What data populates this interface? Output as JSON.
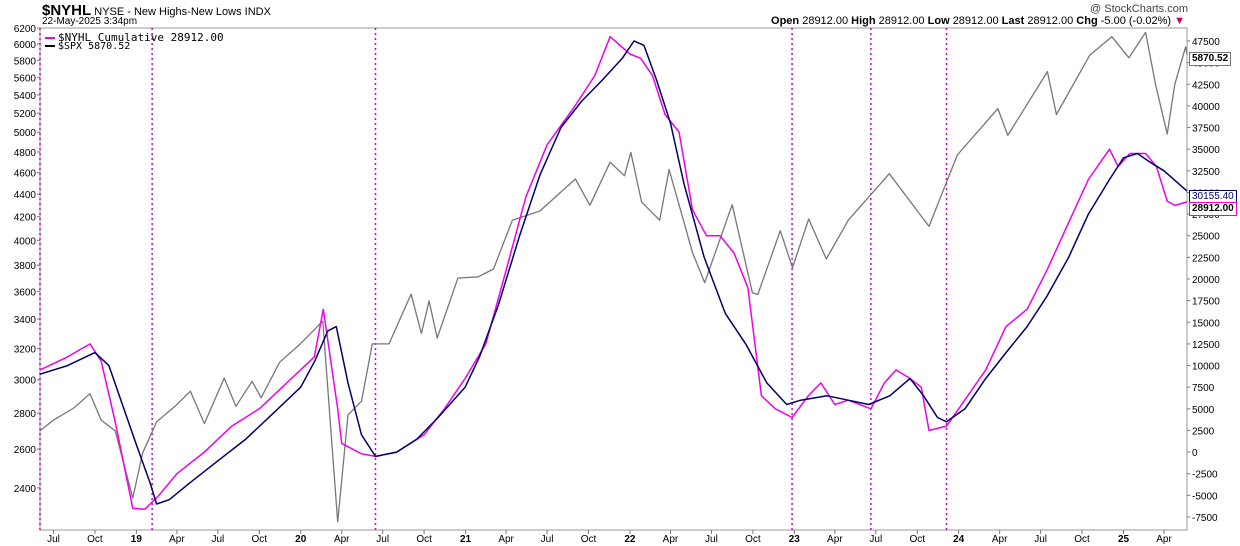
{
  "header": {
    "symbol": "$NYHL",
    "description": "NYSE - New Highs-New Lows",
    "exchange": "INDX",
    "date": "22-May-2025 3:34pm",
    "watermark": "@ StockCharts.com",
    "open_label": "Open",
    "open": "28912.00",
    "high_label": "High",
    "high": "28912.00",
    "low_label": "Low",
    "low": "28912.00",
    "last_label": "Last",
    "last": "28912.00",
    "chg_label": "Chg",
    "chg": "-5.00 (-0.02%)"
  },
  "legend": [
    {
      "label": "$NYHL Cumulative 28912.00",
      "color": "#ee00ee"
    },
    {
      "label": "$SPX 5870.52",
      "color": "#000000"
    }
  ],
  "tags": {
    "spx_last": "5870.52",
    "ma_last": "30155.40",
    "nyhl_last": "28912.00"
  },
  "chart_data": {
    "type": "line",
    "x_range": [
      "2018-06-01",
      "2025-05-22"
    ],
    "x_tick_labels": [
      "Jul",
      "Oct",
      "19",
      "Apr",
      "Jul",
      "Oct",
      "20",
      "Apr",
      "Jul",
      "Oct",
      "21",
      "Apr",
      "Jul",
      "Oct",
      "22",
      "Apr",
      "Jul",
      "Oct",
      "23",
      "Apr",
      "Jul",
      "Oct",
      "24",
      "Apr",
      "Jul",
      "Oct",
      "25",
      "Apr"
    ],
    "x_tick_dates": [
      "2018-07-01",
      "2018-10-01",
      "2019-01-01",
      "2019-04-01",
      "2019-07-01",
      "2019-10-01",
      "2020-01-01",
      "2020-04-01",
      "2020-07-01",
      "2020-10-01",
      "2021-01-01",
      "2021-04-01",
      "2021-07-01",
      "2021-10-01",
      "2022-01-01",
      "2022-04-01",
      "2022-07-01",
      "2022-10-01",
      "2023-01-01",
      "2023-04-01",
      "2023-07-01",
      "2023-10-01",
      "2024-01-01",
      "2024-04-01",
      "2024-07-01",
      "2024-10-01",
      "2025-01-01",
      "2025-04-01"
    ],
    "left_axis": {
      "label": "",
      "scale": "log",
      "range": [
        2200,
        6200
      ],
      "ticks": [
        2400,
        2600,
        2800,
        3000,
        3200,
        3400,
        3600,
        3800,
        4000,
        4200,
        4400,
        4600,
        4800,
        5000,
        5200,
        5400,
        5600,
        5800,
        6000,
        6200
      ]
    },
    "right_axis": {
      "label": "",
      "scale": "linear",
      "range": [
        -9000,
        49000
      ],
      "ticks": [
        -7500,
        -5000,
        -2500,
        0,
        2500,
        5000,
        7500,
        10000,
        12500,
        15000,
        17500,
        20000,
        22500,
        25000,
        27500,
        30000,
        32500,
        35000,
        37500,
        40000,
        42500,
        45000,
        47500
      ]
    },
    "vertical_markers": [
      "2018-06-01",
      "2019-02-05",
      "2020-06-15",
      "2022-12-27",
      "2023-06-20",
      "2023-12-05"
    ],
    "series": [
      {
        "name": "$SPX",
        "axis": "left",
        "color": "#777777",
        "points": [
          [
            "2018-06-01",
            2700
          ],
          [
            "2018-07-01",
            2760
          ],
          [
            "2018-08-15",
            2830
          ],
          [
            "2018-09-20",
            2915
          ],
          [
            "2018-10-15",
            2760
          ],
          [
            "2018-11-15",
            2700
          ],
          [
            "2018-12-24",
            2350
          ],
          [
            "2019-01-15",
            2580
          ],
          [
            "2019-02-15",
            2750
          ],
          [
            "2019-04-01",
            2850
          ],
          [
            "2019-05-01",
            2930
          ],
          [
            "2019-06-01",
            2740
          ],
          [
            "2019-07-15",
            3010
          ],
          [
            "2019-08-10",
            2840
          ],
          [
            "2019-09-15",
            2990
          ],
          [
            "2019-10-05",
            2890
          ],
          [
            "2019-11-15",
            3110
          ],
          [
            "2019-12-31",
            3230
          ],
          [
            "2020-02-19",
            3386
          ],
          [
            "2020-03-23",
            2237
          ],
          [
            "2020-04-15",
            2790
          ],
          [
            "2020-05-15",
            2870
          ],
          [
            "2020-06-08",
            3230
          ],
          [
            "2020-07-15",
            3230
          ],
          [
            "2020-09-02",
            3580
          ],
          [
            "2020-09-25",
            3300
          ],
          [
            "2020-10-12",
            3530
          ],
          [
            "2020-10-30",
            3270
          ],
          [
            "2020-12-15",
            3700
          ],
          [
            "2021-01-29",
            3710
          ],
          [
            "2021-03-04",
            3770
          ],
          [
            "2021-04-15",
            4170
          ],
          [
            "2021-06-15",
            4250
          ],
          [
            "2021-09-02",
            4540
          ],
          [
            "2021-10-04",
            4300
          ],
          [
            "2021-11-18",
            4700
          ],
          [
            "2021-12-20",
            4570
          ],
          [
            "2022-01-03",
            4796
          ],
          [
            "2022-01-27",
            4330
          ],
          [
            "2022-03-08",
            4170
          ],
          [
            "2022-03-29",
            4630
          ],
          [
            "2022-05-20",
            3900
          ],
          [
            "2022-06-16",
            3666
          ],
          [
            "2022-08-16",
            4305
          ],
          [
            "2022-09-30",
            3590
          ],
          [
            "2022-10-12",
            3577
          ],
          [
            "2022-12-01",
            4080
          ],
          [
            "2022-12-28",
            3780
          ],
          [
            "2023-02-02",
            4180
          ],
          [
            "2023-03-13",
            3850
          ],
          [
            "2023-05-01",
            4170
          ],
          [
            "2023-07-31",
            4590
          ],
          [
            "2023-10-27",
            4117
          ],
          [
            "2023-12-29",
            4770
          ],
          [
            "2024-03-28",
            5250
          ],
          [
            "2024-04-19",
            4967
          ],
          [
            "2024-07-16",
            5667
          ],
          [
            "2024-08-05",
            5186
          ],
          [
            "2024-10-18",
            5860
          ],
          [
            "2024-12-06",
            6090
          ],
          [
            "2025-01-13",
            5830
          ],
          [
            "2025-02-19",
            6144
          ],
          [
            "2025-03-13",
            5520
          ],
          [
            "2025-04-08",
            4982
          ],
          [
            "2025-04-25",
            5520
          ],
          [
            "2025-05-19",
            5963
          ],
          [
            "2025-05-22",
            5870.52
          ]
        ]
      },
      {
        "name": "$NYHL Cumulative",
        "axis": "right",
        "color": "#ee00ee",
        "points": [
          [
            "2018-06-01",
            9500
          ],
          [
            "2018-08-01",
            11000
          ],
          [
            "2018-09-20",
            12500
          ],
          [
            "2018-10-15",
            10500
          ],
          [
            "2018-11-15",
            3500
          ],
          [
            "2018-12-24",
            -6500
          ],
          [
            "2019-01-20",
            -6600
          ],
          [
            "2019-02-20",
            -5000
          ],
          [
            "2019-04-01",
            -2500
          ],
          [
            "2019-06-01",
            0
          ],
          [
            "2019-08-01",
            3000
          ],
          [
            "2019-10-01",
            5000
          ],
          [
            "2019-12-01",
            8000
          ],
          [
            "2020-01-31",
            11000
          ],
          [
            "2020-02-20",
            16500
          ],
          [
            "2020-03-23",
            5000
          ],
          [
            "2020-04-01",
            1000
          ],
          [
            "2020-05-15",
            -200
          ],
          [
            "2020-06-15",
            -500
          ],
          [
            "2020-08-01",
            0
          ],
          [
            "2020-10-01",
            2000
          ],
          [
            "2020-11-15",
            5000
          ],
          [
            "2020-12-31",
            8500
          ],
          [
            "2021-02-15",
            12500
          ],
          [
            "2021-04-01",
            21000
          ],
          [
            "2021-05-15",
            29500
          ],
          [
            "2021-07-01",
            35500
          ],
          [
            "2021-09-01",
            40000
          ],
          [
            "2021-10-15",
            43500
          ],
          [
            "2021-11-18",
            48000
          ],
          [
            "2022-01-01",
            46000
          ],
          [
            "2022-01-25",
            45500
          ],
          [
            "2022-02-20",
            43500
          ],
          [
            "2022-03-20",
            39000
          ],
          [
            "2022-04-20",
            37000
          ],
          [
            "2022-05-20",
            28000
          ],
          [
            "2022-06-20",
            25000
          ],
          [
            "2022-07-20",
            25000
          ],
          [
            "2022-08-20",
            23000
          ],
          [
            "2022-09-20",
            19000
          ],
          [
            "2022-10-20",
            6500
          ],
          [
            "2022-11-20",
            5000
          ],
          [
            "2022-12-27",
            4000
          ],
          [
            "2023-02-01",
            6500
          ],
          [
            "2023-03-01",
            8000
          ],
          [
            "2023-04-01",
            5500
          ],
          [
            "2023-05-01",
            6000
          ],
          [
            "2023-06-20",
            5000
          ],
          [
            "2023-07-20",
            8000
          ],
          [
            "2023-08-15",
            9500
          ],
          [
            "2023-09-15",
            8500
          ],
          [
            "2023-10-10",
            7500
          ],
          [
            "2023-10-27",
            2500
          ],
          [
            "2023-12-05",
            3000
          ],
          [
            "2024-01-01",
            5000
          ],
          [
            "2024-03-01",
            9500
          ],
          [
            "2024-04-15",
            14500
          ],
          [
            "2024-06-01",
            16500
          ],
          [
            "2024-07-15",
            21000
          ],
          [
            "2024-09-01",
            26500
          ],
          [
            "2024-10-15",
            31500
          ],
          [
            "2024-12-01",
            35000
          ],
          [
            "2024-12-20",
            33000
          ],
          [
            "2025-01-15",
            34500
          ],
          [
            "2025-02-19",
            34500
          ],
          [
            "2025-03-15",
            33000
          ],
          [
            "2025-04-08",
            29000
          ],
          [
            "2025-04-25",
            28500
          ],
          [
            "2025-05-22",
            28912
          ]
        ]
      },
      {
        "name": "",
        "axis": "right",
        "color": "#000066",
        "points": [
          [
            "2018-06-01",
            9000
          ],
          [
            "2018-08-01",
            10000
          ],
          [
            "2018-10-01",
            11500
          ],
          [
            "2018-11-01",
            10000
          ],
          [
            "2018-12-01",
            5500
          ],
          [
            "2018-12-31",
            1000
          ],
          [
            "2019-01-31",
            -3500
          ],
          [
            "2019-02-15",
            -6000
          ],
          [
            "2019-03-15",
            -5500
          ],
          [
            "2019-05-01",
            -3500
          ],
          [
            "2019-07-01",
            -1000
          ],
          [
            "2019-09-01",
            1500
          ],
          [
            "2019-11-01",
            4500
          ],
          [
            "2020-01-01",
            7500
          ],
          [
            "2020-02-01",
            10500
          ],
          [
            "2020-03-01",
            14000
          ],
          [
            "2020-03-20",
            14500
          ],
          [
            "2020-04-15",
            8000
          ],
          [
            "2020-05-15",
            2000
          ],
          [
            "2020-06-15",
            -500
          ],
          [
            "2020-08-01",
            0
          ],
          [
            "2020-09-15",
            1500
          ],
          [
            "2020-11-01",
            4000
          ],
          [
            "2020-12-31",
            7500
          ],
          [
            "2021-02-01",
            11000
          ],
          [
            "2021-03-15",
            17000
          ],
          [
            "2021-05-01",
            25000
          ],
          [
            "2021-06-15",
            32000
          ],
          [
            "2021-08-01",
            37500
          ],
          [
            "2021-09-15",
            40500
          ],
          [
            "2021-11-01",
            43000
          ],
          [
            "2021-12-15",
            45500
          ],
          [
            "2022-01-10",
            47500
          ],
          [
            "2022-02-01",
            47000
          ],
          [
            "2022-03-01",
            43000
          ],
          [
            "2022-04-01",
            38000
          ],
          [
            "2022-05-01",
            31000
          ],
          [
            "2022-06-15",
            22500
          ],
          [
            "2022-08-01",
            16000
          ],
          [
            "2022-09-15",
            12500
          ],
          [
            "2022-11-01",
            8000
          ],
          [
            "2022-12-15",
            5500
          ],
          [
            "2023-01-15",
            6000
          ],
          [
            "2023-03-15",
            6500
          ],
          [
            "2023-05-01",
            6000
          ],
          [
            "2023-06-15",
            5500
          ],
          [
            "2023-08-01",
            6500
          ],
          [
            "2023-09-15",
            8500
          ],
          [
            "2023-10-15",
            6500
          ],
          [
            "2023-11-15",
            4000
          ],
          [
            "2023-12-05",
            3500
          ],
          [
            "2024-01-15",
            5000
          ],
          [
            "2024-03-01",
            8500
          ],
          [
            "2024-04-15",
            11500
          ],
          [
            "2024-06-01",
            14500
          ],
          [
            "2024-07-15",
            18000
          ],
          [
            "2024-09-01",
            22500
          ],
          [
            "2024-10-15",
            27500
          ],
          [
            "2024-12-01",
            31500
          ],
          [
            "2025-01-01",
            34000
          ],
          [
            "2025-02-01",
            34500
          ],
          [
            "2025-03-01",
            33500
          ],
          [
            "2025-04-01",
            32500
          ],
          [
            "2025-05-22",
            30155.4
          ]
        ]
      }
    ]
  }
}
